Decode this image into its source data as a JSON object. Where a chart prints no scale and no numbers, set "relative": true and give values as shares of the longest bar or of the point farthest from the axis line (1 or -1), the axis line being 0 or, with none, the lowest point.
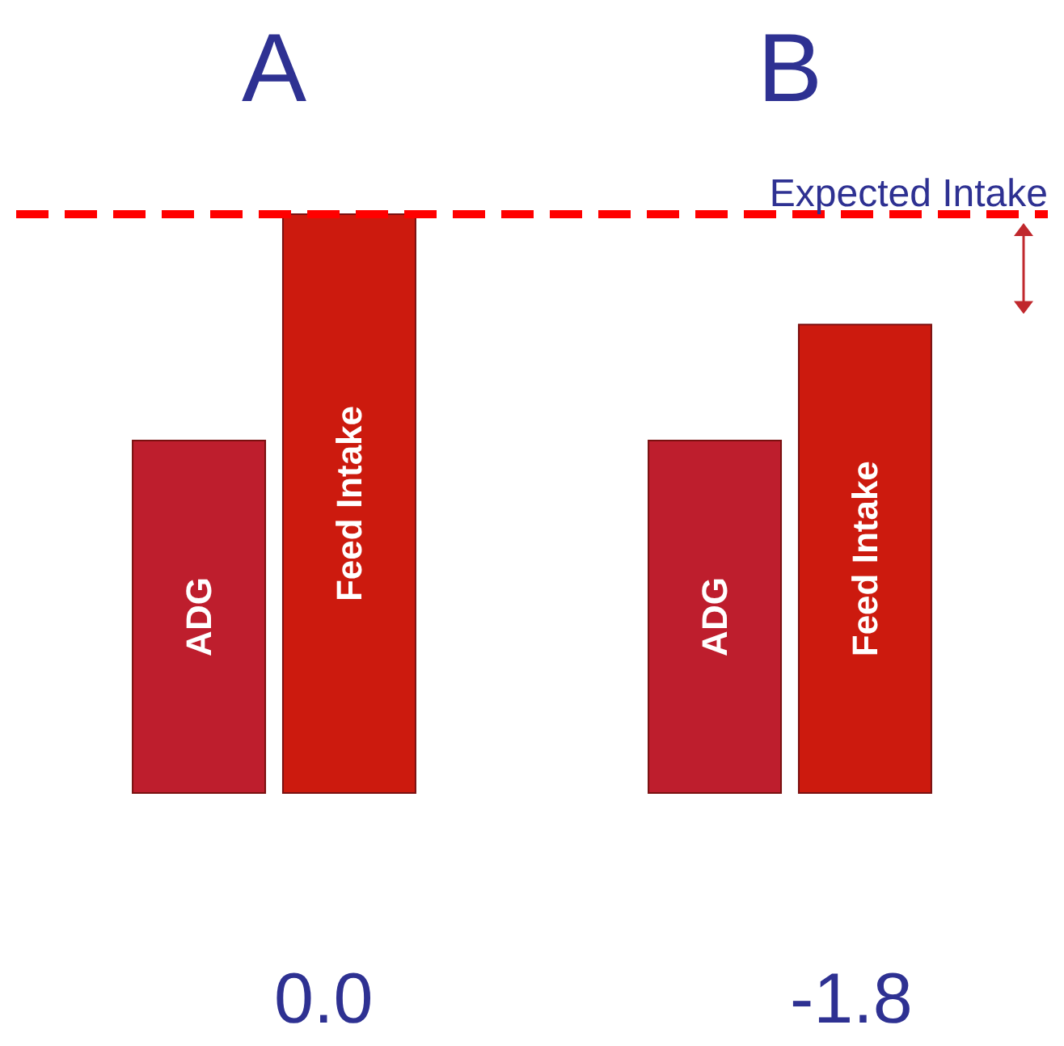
{
  "chart_data": {
    "type": "bar",
    "relative": true,
    "categories": [
      "A",
      "B"
    ],
    "series": [
      {
        "name": "ADG",
        "color": "#be1e2d",
        "values": [
          0.61,
          0.61
        ]
      },
      {
        "name": "Feed Intake",
        "color": "#cc1a0e",
        "values": [
          1,
          0.81
        ]
      }
    ],
    "ref_lines": [
      {
        "axis": "y",
        "value": 1,
        "label": "Expected Intake",
        "color": "#ff0000",
        "line_style": "dashed"
      }
    ],
    "annotations": [
      "0.0",
      "-1.8"
    ],
    "legend": false,
    "grid": false
  }
}
